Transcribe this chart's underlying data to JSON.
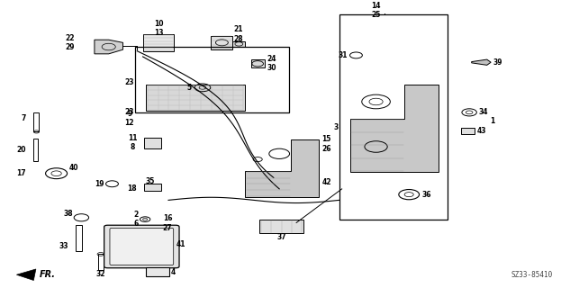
{
  "bg_color": "#ffffff",
  "diagram_code": "SZ33-85410",
  "fr_label": "FR.",
  "line_color": "#000000",
  "text_color": "#000000"
}
